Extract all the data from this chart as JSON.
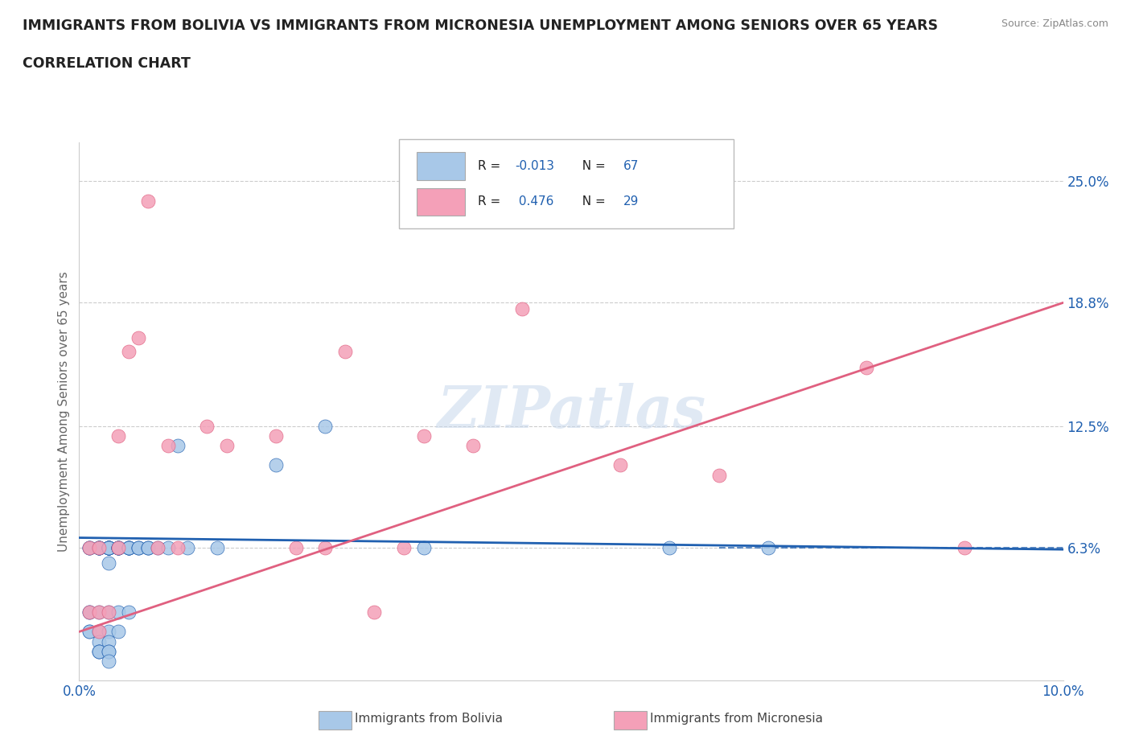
{
  "title_line1": "IMMIGRANTS FROM BOLIVIA VS IMMIGRANTS FROM MICRONESIA UNEMPLOYMENT AMONG SENIORS OVER 65 YEARS",
  "title_line2": "CORRELATION CHART",
  "source_text": "Source: ZipAtlas.com",
  "ylabel": "Unemployment Among Seniors over 65 years",
  "xlim": [
    0.0,
    0.1
  ],
  "ylim": [
    -0.005,
    0.27
  ],
  "yticks": [
    0.063,
    0.125,
    0.188,
    0.25
  ],
  "ytick_labels": [
    "6.3%",
    "12.5%",
    "18.8%",
    "25.0%"
  ],
  "xticks": [
    0.0,
    0.02,
    0.04,
    0.06,
    0.08,
    0.1
  ],
  "xtick_labels": [
    "0.0%",
    "",
    "",
    "",
    "",
    "10.0%"
  ],
  "bolivia_color": "#a8c8e8",
  "micronesia_color": "#f4a0b8",
  "bolivia_line_color": "#2060b0",
  "micronesia_line_color": "#e06080",
  "watermark": "ZIPatlas",
  "background_color": "#ffffff",
  "grid_color": "#cccccc",
  "bolivia_x": [
    0.001,
    0.001,
    0.001,
    0.001,
    0.001,
    0.001,
    0.001,
    0.002,
    0.002,
    0.002,
    0.002,
    0.002,
    0.002,
    0.002,
    0.002,
    0.002,
    0.002,
    0.002,
    0.002,
    0.003,
    0.003,
    0.003,
    0.003,
    0.003,
    0.003,
    0.003,
    0.003,
    0.003,
    0.003,
    0.003,
    0.003,
    0.003,
    0.003,
    0.003,
    0.003,
    0.003,
    0.004,
    0.004,
    0.004,
    0.004,
    0.004,
    0.004,
    0.004,
    0.004,
    0.005,
    0.005,
    0.005,
    0.005,
    0.005,
    0.005,
    0.005,
    0.006,
    0.006,
    0.006,
    0.007,
    0.007,
    0.007,
    0.008,
    0.009,
    0.01,
    0.011,
    0.014,
    0.02,
    0.025,
    0.035,
    0.06,
    0.07
  ],
  "bolivia_y": [
    0.063,
    0.063,
    0.063,
    0.03,
    0.03,
    0.02,
    0.02,
    0.063,
    0.063,
    0.063,
    0.063,
    0.063,
    0.063,
    0.03,
    0.02,
    0.015,
    0.01,
    0.01,
    0.01,
    0.063,
    0.063,
    0.063,
    0.063,
    0.063,
    0.063,
    0.063,
    0.063,
    0.063,
    0.063,
    0.055,
    0.03,
    0.02,
    0.015,
    0.01,
    0.01,
    0.005,
    0.063,
    0.063,
    0.063,
    0.063,
    0.063,
    0.063,
    0.03,
    0.02,
    0.063,
    0.063,
    0.063,
    0.063,
    0.063,
    0.063,
    0.03,
    0.063,
    0.063,
    0.063,
    0.063,
    0.063,
    0.063,
    0.063,
    0.063,
    0.115,
    0.063,
    0.063,
    0.105,
    0.125,
    0.063,
    0.063,
    0.063
  ],
  "micronesia_x": [
    0.001,
    0.001,
    0.002,
    0.002,
    0.002,
    0.003,
    0.004,
    0.004,
    0.005,
    0.006,
    0.007,
    0.008,
    0.009,
    0.01,
    0.013,
    0.015,
    0.02,
    0.022,
    0.025,
    0.027,
    0.03,
    0.033,
    0.035,
    0.04,
    0.045,
    0.055,
    0.065,
    0.08,
    0.09
  ],
  "micronesia_y": [
    0.063,
    0.03,
    0.063,
    0.03,
    0.02,
    0.03,
    0.063,
    0.12,
    0.163,
    0.17,
    0.24,
    0.063,
    0.115,
    0.063,
    0.125,
    0.115,
    0.12,
    0.063,
    0.063,
    0.163,
    0.03,
    0.063,
    0.12,
    0.115,
    0.185,
    0.105,
    0.1,
    0.155,
    0.063
  ],
  "bolivia_line_y0": 0.068,
  "bolivia_line_y1": 0.062,
  "micronesia_line_y0": 0.02,
  "micronesia_line_y1": 0.188,
  "dashed_line_y": 0.063
}
